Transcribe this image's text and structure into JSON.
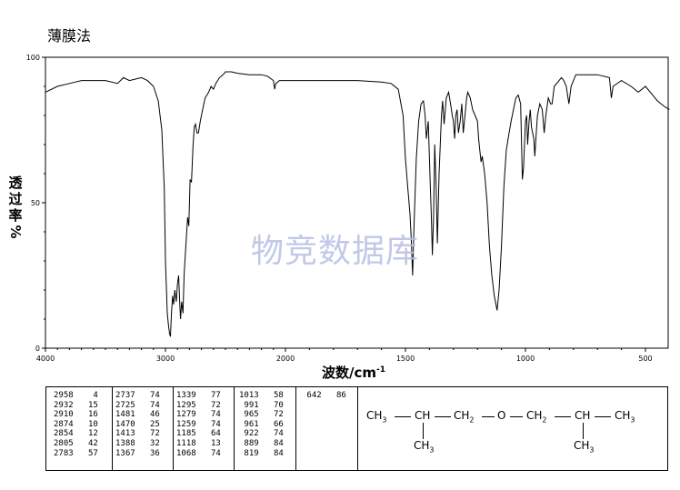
{
  "title": "薄膜法",
  "watermark": "物竞数据库",
  "chart_data": {
    "type": "line",
    "title": "",
    "xlabel": "波数/cm⁻¹",
    "ylabel": "透过率%",
    "ylabel_chars": [
      "透",
      "过",
      "率",
      "%"
    ],
    "xlim": [
      4000,
      400
    ],
    "ylim": [
      0,
      100
    ],
    "x_ticks": [
      "4000",
      "3000",
      "2000",
      "1500",
      "1000",
      "500"
    ],
    "y_ticks": [
      "0",
      "50",
      "100"
    ],
    "series": [
      {
        "points": [
          [
            4000,
            88
          ],
          [
            3900,
            90
          ],
          [
            3800,
            91
          ],
          [
            3700,
            92
          ],
          [
            3600,
            92
          ],
          [
            3500,
            92
          ],
          [
            3400,
            91
          ],
          [
            3350,
            93
          ],
          [
            3300,
            92
          ],
          [
            3250,
            92.5
          ],
          [
            3200,
            93
          ],
          [
            3150,
            92
          ],
          [
            3100,
            90
          ],
          [
            3060,
            85
          ],
          [
            3030,
            75
          ],
          [
            3010,
            55
          ],
          [
            3000,
            30
          ],
          [
            2985,
            12
          ],
          [
            2975,
            8
          ],
          [
            2966,
            5
          ],
          [
            2958,
            4
          ],
          [
            2950,
            12
          ],
          [
            2940,
            18
          ],
          [
            2932,
            15
          ],
          [
            2922,
            20
          ],
          [
            2910,
            16
          ],
          [
            2900,
            22
          ],
          [
            2890,
            25
          ],
          [
            2880,
            15
          ],
          [
            2874,
            10
          ],
          [
            2865,
            16
          ],
          [
            2854,
            12
          ],
          [
            2845,
            25
          ],
          [
            2830,
            35
          ],
          [
            2815,
            45
          ],
          [
            2805,
            42
          ],
          [
            2795,
            58
          ],
          [
            2783,
            57
          ],
          [
            2770,
            70
          ],
          [
            2760,
            76
          ],
          [
            2750,
            77
          ],
          [
            2737,
            74
          ],
          [
            2725,
            74
          ],
          [
            2710,
            78
          ],
          [
            2690,
            82
          ],
          [
            2670,
            86
          ],
          [
            2640,
            88
          ],
          [
            2620,
            90
          ],
          [
            2600,
            89
          ],
          [
            2580,
            91
          ],
          [
            2550,
            93
          ],
          [
            2520,
            94
          ],
          [
            2500,
            95
          ],
          [
            2450,
            95
          ],
          [
            2400,
            94.5
          ],
          [
            2300,
            94
          ],
          [
            2200,
            94
          ],
          [
            2150,
            93.5
          ],
          [
            2100,
            92
          ],
          [
            2090,
            89
          ],
          [
            2080,
            91
          ],
          [
            2050,
            92
          ],
          [
            2000,
            92
          ],
          [
            1900,
            92
          ],
          [
            1800,
            92
          ],
          [
            1700,
            92
          ],
          [
            1600,
            91.5
          ],
          [
            1560,
            91
          ],
          [
            1530,
            89
          ],
          [
            1510,
            80
          ],
          [
            1500,
            65
          ],
          [
            1490,
            55
          ],
          [
            1481,
            46
          ],
          [
            1476,
            38
          ],
          [
            1470,
            25
          ],
          [
            1465,
            40
          ],
          [
            1455,
            65
          ],
          [
            1445,
            78
          ],
          [
            1435,
            84
          ],
          [
            1425,
            85
          ],
          [
            1418,
            80
          ],
          [
            1413,
            72
          ],
          [
            1405,
            78
          ],
          [
            1398,
            60
          ],
          [
            1392,
            45
          ],
          [
            1388,
            32
          ],
          [
            1383,
            45
          ],
          [
            1378,
            70
          ],
          [
            1372,
            55
          ],
          [
            1367,
            36
          ],
          [
            1360,
            60
          ],
          [
            1350,
            80
          ],
          [
            1345,
            85
          ],
          [
            1339,
            77
          ],
          [
            1330,
            86
          ],
          [
            1320,
            88
          ],
          [
            1312,
            84
          ],
          [
            1305,
            80
          ],
          [
            1300,
            78
          ],
          [
            1295,
            72
          ],
          [
            1290,
            80
          ],
          [
            1285,
            82
          ],
          [
            1279,
            74
          ],
          [
            1272,
            78
          ],
          [
            1265,
            84
          ],
          [
            1259,
            74
          ],
          [
            1252,
            80
          ],
          [
            1245,
            86
          ],
          [
            1240,
            88
          ],
          [
            1230,
            86
          ],
          [
            1220,
            82
          ],
          [
            1210,
            80
          ],
          [
            1200,
            78
          ],
          [
            1195,
            72
          ],
          [
            1190,
            68
          ],
          [
            1185,
            64
          ],
          [
            1180,
            66
          ],
          [
            1170,
            60
          ],
          [
            1160,
            50
          ],
          [
            1150,
            35
          ],
          [
            1140,
            25
          ],
          [
            1130,
            18
          ],
          [
            1118,
            13
          ],
          [
            1110,
            20
          ],
          [
            1100,
            35
          ],
          [
            1090,
            55
          ],
          [
            1080,
            68
          ],
          [
            1068,
            74
          ],
          [
            1060,
            78
          ],
          [
            1050,
            82
          ],
          [
            1040,
            86
          ],
          [
            1030,
            87
          ],
          [
            1020,
            84
          ],
          [
            1013,
            58
          ],
          [
            1008,
            62
          ],
          [
            1000,
            78
          ],
          [
            995,
            80
          ],
          [
            991,
            70
          ],
          [
            985,
            78
          ],
          [
            980,
            82
          ],
          [
            975,
            76
          ],
          [
            965,
            72
          ],
          [
            961,
            66
          ],
          [
            955,
            74
          ],
          [
            950,
            80
          ],
          [
            940,
            84
          ],
          [
            930,
            82
          ],
          [
            922,
            74
          ],
          [
            915,
            80
          ],
          [
            905,
            86
          ],
          [
            895,
            84
          ],
          [
            889,
            84
          ],
          [
            880,
            90
          ],
          [
            860,
            92
          ],
          [
            850,
            93
          ],
          [
            840,
            92
          ],
          [
            830,
            90
          ],
          [
            819,
            84
          ],
          [
            810,
            90
          ],
          [
            790,
            94
          ],
          [
            760,
            94
          ],
          [
            700,
            94
          ],
          [
            650,
            93
          ],
          [
            642,
            86
          ],
          [
            635,
            90
          ],
          [
            600,
            92
          ],
          [
            560,
            90
          ],
          [
            530,
            88
          ],
          [
            500,
            90
          ],
          [
            470,
            87
          ],
          [
            450,
            85
          ],
          [
            420,
            83
          ],
          [
            400,
            82
          ]
        ]
      }
    ]
  },
  "peak_table": {
    "columns": [
      [
        [
          "2958",
          "4"
        ],
        [
          "2932",
          "15"
        ],
        [
          "2910",
          "16"
        ],
        [
          "2874",
          "10"
        ],
        [
          "2854",
          "12"
        ],
        [
          "2805",
          "42"
        ],
        [
          "2783",
          "57"
        ]
      ],
      [
        [
          "2737",
          "74"
        ],
        [
          "2725",
          "74"
        ],
        [
          "1481",
          "46"
        ],
        [
          "1470",
          "25"
        ],
        [
          "1413",
          "72"
        ],
        [
          "1388",
          "32"
        ],
        [
          "1367",
          "36"
        ]
      ],
      [
        [
          "1339",
          "77"
        ],
        [
          "1295",
          "72"
        ],
        [
          "1279",
          "74"
        ],
        [
          "1259",
          "74"
        ],
        [
          "1185",
          "64"
        ],
        [
          "1118",
          "13"
        ],
        [
          "1068",
          "74"
        ]
      ],
      [
        [
          "1013",
          "58"
        ],
        [
          "991",
          "70"
        ],
        [
          "965",
          "72"
        ],
        [
          "961",
          "66"
        ],
        [
          "922",
          "74"
        ],
        [
          "889",
          "84"
        ],
        [
          "819",
          "84"
        ]
      ],
      [
        [
          "642",
          "86"
        ]
      ]
    ]
  },
  "structure": {
    "labels": [
      "CH",
      "CH",
      "CH",
      "O",
      "CH",
      "CH",
      "CH",
      "CH",
      "CH"
    ],
    "subscripts": [
      "3",
      "",
      "2",
      "",
      "2",
      "",
      "3",
      "3",
      "3"
    ]
  }
}
